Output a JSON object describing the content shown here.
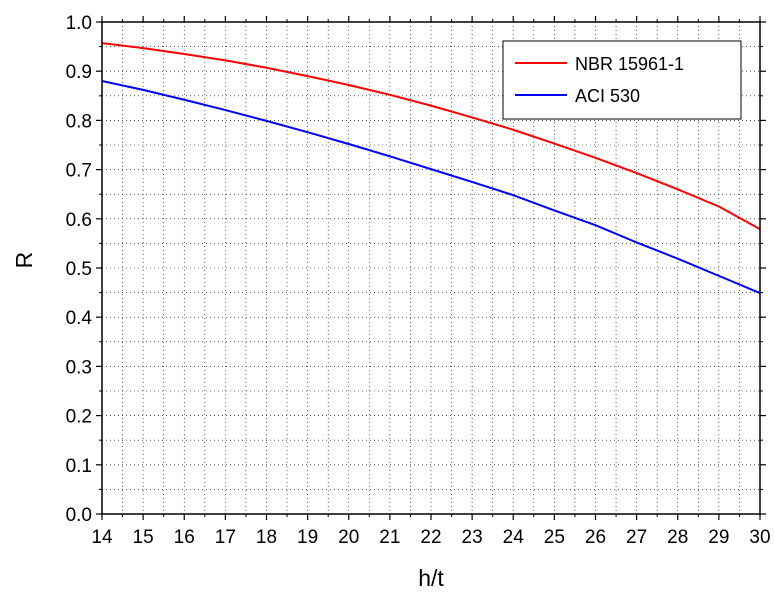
{
  "chart_data": {
    "type": "line",
    "title": "",
    "xlabel": "h/t",
    "ylabel": "R",
    "xlim": [
      14,
      30
    ],
    "ylim": [
      0.0,
      1.0
    ],
    "x_ticks": [
      "14",
      "15",
      "16",
      "17",
      "18",
      "19",
      "20",
      "21",
      "22",
      "23",
      "24",
      "25",
      "26",
      "27",
      "28",
      "29",
      "30"
    ],
    "y_ticks": [
      "0.0",
      "0.1",
      "0.2",
      "0.3",
      "0.4",
      "0.5",
      "0.6",
      "0.7",
      "0.8",
      "0.9",
      "1.0"
    ],
    "grid": true,
    "legend_position": "top-right",
    "series": [
      {
        "name": "NBR 15961-1",
        "color": "#ff0000",
        "x": [
          14,
          15,
          16,
          17,
          18,
          19,
          20,
          21,
          22,
          23,
          24,
          25,
          26,
          27,
          28,
          29,
          30
        ],
        "y": [
          0.957,
          0.947,
          0.935,
          0.922,
          0.907,
          0.89,
          0.872,
          0.852,
          0.83,
          0.806,
          0.781,
          0.753,
          0.724,
          0.693,
          0.66,
          0.625,
          0.579
        ]
      },
      {
        "name": "ACI 530",
        "color": "#0000ff",
        "x": [
          14,
          15,
          16,
          17,
          18,
          19,
          20,
          21,
          22,
          23,
          24,
          25,
          26,
          27,
          28,
          29,
          30
        ],
        "y": [
          0.88,
          0.862,
          0.842,
          0.821,
          0.799,
          0.776,
          0.752,
          0.727,
          0.701,
          0.675,
          0.648,
          0.617,
          0.587,
          0.552,
          0.519,
          0.484,
          0.449
        ]
      }
    ]
  }
}
